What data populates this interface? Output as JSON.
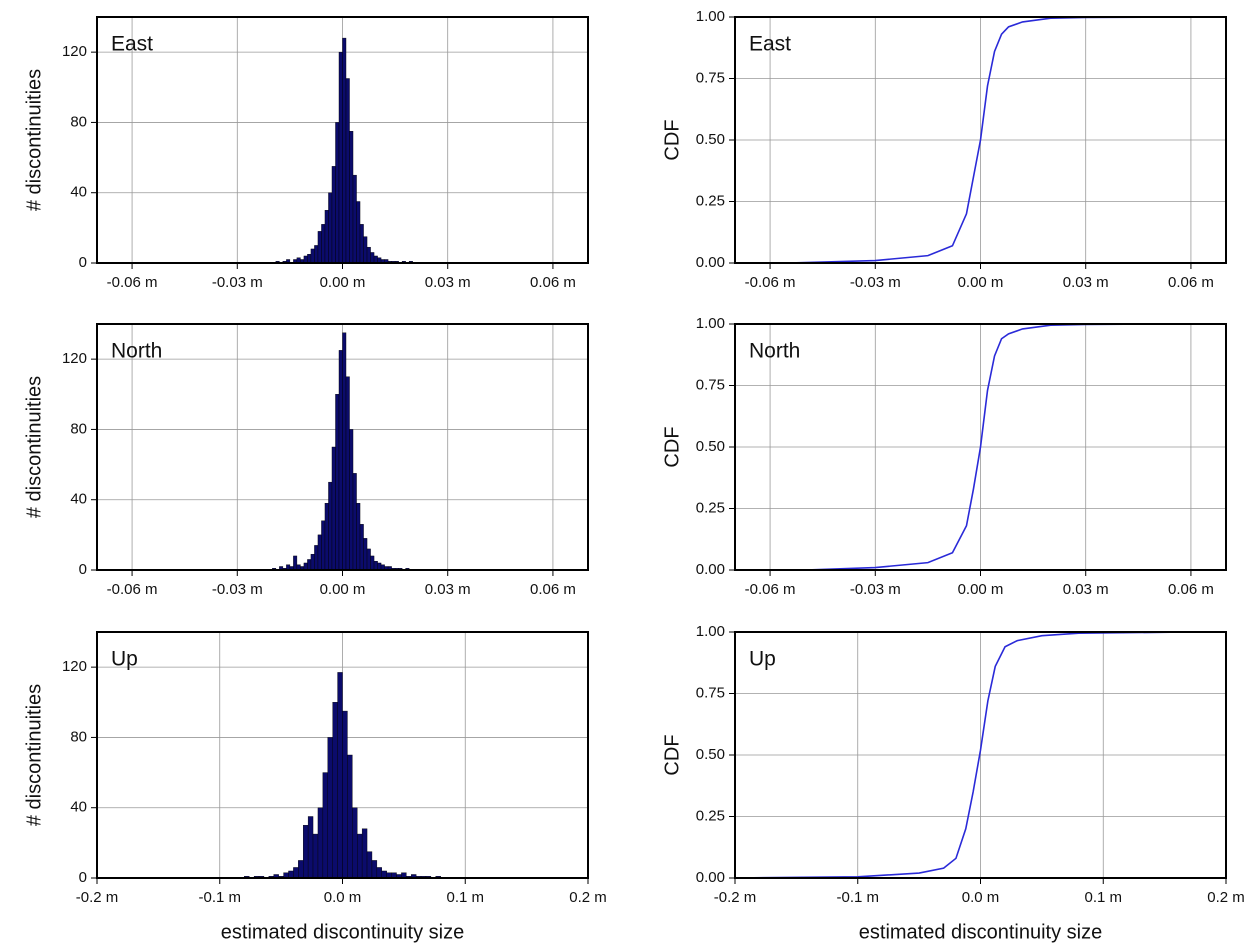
{
  "chart_data": [
    {
      "type": "histogram",
      "annotation": "East",
      "ylabel": "# discontinuities",
      "color": "#0b0b6b",
      "grid": true,
      "xlim": [
        -0.07,
        0.07
      ],
      "xticks": [
        {
          "value": -0.06,
          "label": "-0.06 m"
        },
        {
          "value": -0.03,
          "label": "-0.03 m"
        },
        {
          "value": 0,
          "label": "0.00 m"
        },
        {
          "value": 0.03,
          "label": "0.03 m"
        },
        {
          "value": 0.06,
          "label": "0.06 m"
        }
      ],
      "ylim": [
        0,
        140
      ],
      "yticks": [
        0,
        40,
        80,
        120
      ],
      "bins": [
        -0.02,
        -0.019,
        -0.018,
        -0.017,
        -0.016,
        -0.015,
        -0.014,
        -0.013,
        -0.012,
        -0.011,
        -0.01,
        -0.009,
        -0.008,
        -0.007,
        -0.006,
        -0.005,
        -0.004,
        -0.003,
        -0.002,
        -0.001,
        0,
        0.001,
        0.002,
        0.003,
        0.004,
        0.005,
        0.006,
        0.007,
        0.008,
        0.009,
        0.01,
        0.011,
        0.012,
        0.013,
        0.014,
        0.015,
        0.016,
        0.017,
        0.018,
        0.019,
        0.02
      ],
      "values": [
        0,
        1,
        0,
        1,
        2,
        0,
        2,
        3,
        2,
        4,
        5,
        8,
        10,
        18,
        22,
        30,
        40,
        55,
        80,
        120,
        128,
        105,
        75,
        50,
        35,
        22,
        15,
        9,
        6,
        4,
        3,
        2,
        2,
        1,
        1,
        1,
        0,
        1,
        0,
        1
      ]
    },
    {
      "type": "line",
      "annotation": "East",
      "ylabel": "CDF",
      "color": "#2a2ad8",
      "grid": true,
      "xlim": [
        -0.07,
        0.07
      ],
      "xticks": [
        {
          "value": -0.06,
          "label": "-0.06 m"
        },
        {
          "value": -0.03,
          "label": "-0.03 m"
        },
        {
          "value": 0,
          "label": "0.00 m"
        },
        {
          "value": 0.03,
          "label": "0.03 m"
        },
        {
          "value": 0.06,
          "label": "0.06 m"
        }
      ],
      "ylim": [
        0,
        1
      ],
      "yticks": [
        {
          "value": 0,
          "label": "0.00"
        },
        {
          "value": 0.25,
          "label": "0.25"
        },
        {
          "value": 0.5,
          "label": "0.50"
        },
        {
          "value": 0.75,
          "label": "0.75"
        },
        {
          "value": 1,
          "label": "1.00"
        }
      ],
      "x": [
        -0.055,
        -0.03,
        -0.015,
        -0.008,
        -0.004,
        -0.002,
        0,
        0.002,
        0.004,
        0.006,
        0.008,
        0.012,
        0.02,
        0.03,
        0.06
      ],
      "values": [
        0,
        0.01,
        0.03,
        0.07,
        0.2,
        0.35,
        0.5,
        0.72,
        0.86,
        0.93,
        0.96,
        0.98,
        0.995,
        0.998,
        1
      ]
    },
    {
      "type": "histogram",
      "annotation": "North",
      "ylabel": "# discontinuities",
      "color": "#0b0b6b",
      "grid": true,
      "xlim": [
        -0.07,
        0.07
      ],
      "xticks": [
        {
          "value": -0.06,
          "label": "-0.06 m"
        },
        {
          "value": -0.03,
          "label": "-0.03 m"
        },
        {
          "value": 0,
          "label": "0.00 m"
        },
        {
          "value": 0.03,
          "label": "0.03 m"
        },
        {
          "value": 0.06,
          "label": "0.06 m"
        }
      ],
      "ylim": [
        0,
        140
      ],
      "yticks": [
        0,
        40,
        80,
        120
      ],
      "bins": [
        -0.02,
        -0.019,
        -0.018,
        -0.017,
        -0.016,
        -0.015,
        -0.014,
        -0.013,
        -0.012,
        -0.011,
        -0.01,
        -0.009,
        -0.008,
        -0.007,
        -0.006,
        -0.005,
        -0.004,
        -0.003,
        -0.002,
        -0.001,
        0,
        0.001,
        0.002,
        0.003,
        0.004,
        0.005,
        0.006,
        0.007,
        0.008,
        0.009,
        0.01,
        0.011,
        0.012,
        0.013,
        0.014,
        0.015,
        0.016,
        0.017,
        0.018,
        0.019,
        0.02
      ],
      "values": [
        1,
        0,
        2,
        1,
        3,
        2,
        8,
        3,
        2,
        4,
        6,
        9,
        14,
        20,
        28,
        38,
        50,
        70,
        100,
        125,
        135,
        110,
        80,
        55,
        38,
        26,
        18,
        12,
        8,
        5,
        4,
        3,
        2,
        2,
        1,
        1,
        1,
        0,
        1,
        0
      ]
    },
    {
      "type": "line",
      "annotation": "North",
      "ylabel": "CDF",
      "color": "#2a2ad8",
      "grid": true,
      "xlim": [
        -0.07,
        0.07
      ],
      "xticks": [
        {
          "value": -0.06,
          "label": "-0.06 m"
        },
        {
          "value": -0.03,
          "label": "-0.03 m"
        },
        {
          "value": 0,
          "label": "0.00 m"
        },
        {
          "value": 0.03,
          "label": "0.03 m"
        },
        {
          "value": 0.06,
          "label": "0.06 m"
        }
      ],
      "ylim": [
        0,
        1
      ],
      "yticks": [
        {
          "value": 0,
          "label": "0.00"
        },
        {
          "value": 0.25,
          "label": "0.25"
        },
        {
          "value": 0.5,
          "label": "0.50"
        },
        {
          "value": 0.75,
          "label": "0.75"
        },
        {
          "value": 1,
          "label": "1.00"
        }
      ],
      "x": [
        -0.05,
        -0.03,
        -0.015,
        -0.008,
        -0.004,
        -0.002,
        0,
        0.002,
        0.004,
        0.006,
        0.008,
        0.012,
        0.02,
        0.03,
        0.05
      ],
      "values": [
        0,
        0.01,
        0.03,
        0.07,
        0.18,
        0.33,
        0.5,
        0.73,
        0.87,
        0.94,
        0.96,
        0.98,
        0.995,
        0.998,
        1
      ]
    },
    {
      "type": "histogram",
      "annotation": "Up",
      "ylabel": "# discontinuities",
      "xlabel": "estimated discontinuity size",
      "color": "#0b0b6b",
      "grid": true,
      "xlim": [
        -0.2,
        0.2
      ],
      "xticks": [
        {
          "value": -0.2,
          "label": "-0.2 m"
        },
        {
          "value": -0.1,
          "label": "-0.1 m"
        },
        {
          "value": 0,
          "label": "0.0 m"
        },
        {
          "value": 0.1,
          "label": "0.1 m"
        },
        {
          "value": 0.2,
          "label": "0.2 m"
        }
      ],
      "ylim": [
        0,
        140
      ],
      "yticks": [
        0,
        40,
        80,
        120
      ],
      "bins": [
        -0.08,
        -0.076,
        -0.072,
        -0.068,
        -0.064,
        -0.06,
        -0.056,
        -0.052,
        -0.048,
        -0.044,
        -0.04,
        -0.036,
        -0.032,
        -0.028,
        -0.024,
        -0.02,
        -0.016,
        -0.012,
        -0.008,
        -0.004,
        0,
        0.004,
        0.008,
        0.012,
        0.016,
        0.02,
        0.024,
        0.028,
        0.032,
        0.036,
        0.04,
        0.044,
        0.048,
        0.052,
        0.056,
        0.06,
        0.064,
        0.068,
        0.072,
        0.076,
        0.08
      ],
      "values": [
        1,
        0,
        1,
        1,
        0,
        1,
        2,
        1,
        3,
        4,
        6,
        10,
        30,
        35,
        25,
        40,
        60,
        80,
        100,
        117,
        95,
        70,
        40,
        25,
        28,
        15,
        10,
        6,
        4,
        3,
        3,
        2,
        3,
        1,
        2,
        1,
        1,
        1,
        0,
        1
      ]
    },
    {
      "type": "line",
      "annotation": "Up",
      "ylabel": "CDF",
      "xlabel": "estimated discontinuity size",
      "color": "#2a2ad8",
      "grid": true,
      "xlim": [
        -0.2,
        0.2
      ],
      "xticks": [
        {
          "value": -0.2,
          "label": "-0.2 m"
        },
        {
          "value": -0.1,
          "label": "-0.1 m"
        },
        {
          "value": 0,
          "label": "0.0 m"
        },
        {
          "value": 0.1,
          "label": "0.1 m"
        },
        {
          "value": 0.2,
          "label": "0.2 m"
        }
      ],
      "ylim": [
        0,
        1
      ],
      "yticks": [
        {
          "value": 0,
          "label": "0.00"
        },
        {
          "value": 0.25,
          "label": "0.25"
        },
        {
          "value": 0.5,
          "label": "0.50"
        },
        {
          "value": 0.75,
          "label": "0.75"
        },
        {
          "value": 1,
          "label": "1.00"
        }
      ],
      "x": [
        -0.2,
        -0.1,
        -0.05,
        -0.03,
        -0.02,
        -0.012,
        -0.006,
        0,
        0.006,
        0.012,
        0.02,
        0.03,
        0.05,
        0.08,
        0.17
      ],
      "values": [
        0,
        0.005,
        0.02,
        0.04,
        0.08,
        0.2,
        0.35,
        0.52,
        0.72,
        0.86,
        0.94,
        0.965,
        0.985,
        0.995,
        1
      ]
    }
  ]
}
